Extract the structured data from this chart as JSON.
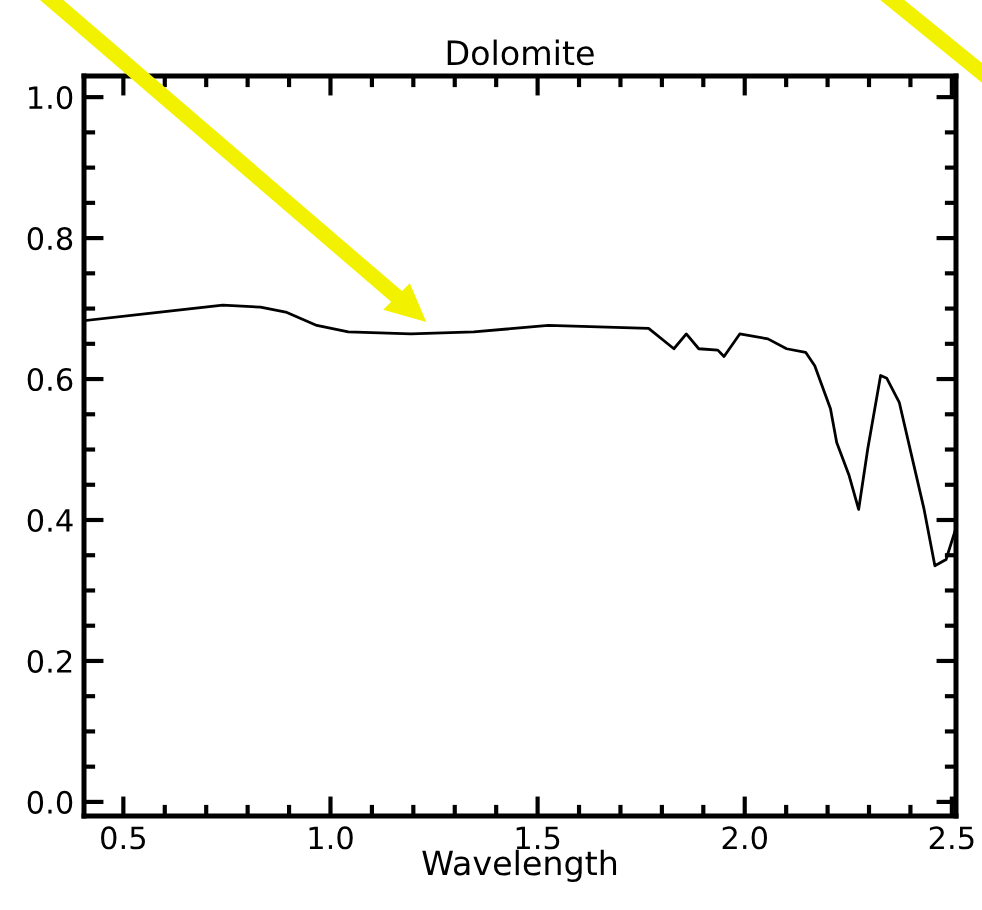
{
  "chart_data": {
    "type": "line",
    "title": "Dolomite",
    "xlabel": "Wavelength",
    "x": [
      0.408,
      0.589,
      0.74,
      0.831,
      0.892,
      0.967,
      1.043,
      1.194,
      1.346,
      1.526,
      1.647,
      1.768,
      1.829,
      1.859,
      1.889,
      1.935,
      1.95,
      1.988,
      2.056,
      2.101,
      2.147,
      2.169,
      2.207,
      2.222,
      2.252,
      2.275,
      2.297,
      2.328,
      2.343,
      2.373,
      2.403,
      2.433,
      2.459,
      2.486,
      2.509
    ],
    "series": [
      {
        "color": "#000000",
        "values": [
          0.683,
          0.695,
          0.705,
          0.702,
          0.695,
          0.676,
          0.667,
          0.664,
          0.667,
          0.676,
          0.674,
          0.672,
          0.643,
          0.664,
          0.643,
          0.641,
          0.632,
          0.664,
          0.657,
          0.643,
          0.638,
          0.619,
          0.558,
          0.51,
          0.463,
          0.415,
          0.501,
          0.605,
          0.601,
          0.567,
          0.491,
          0.415,
          0.335,
          0.344,
          0.387
        ]
      }
    ],
    "xlim": [
      0.405,
      2.51
    ],
    "ylim": [
      -0.02,
      1.03
    ],
    "xticks": [
      0.5,
      {
        "value": 1,
        "label": "1.0"
      },
      1.5,
      {
        "value": 2,
        "label": "2.0"
      },
      2.5
    ],
    "yticks": [
      {
        "value": 0,
        "label": "0.0"
      },
      0.2,
      0.4,
      0.6,
      0.8,
      {
        "value": 1,
        "label": "1.0"
      }
    ],
    "grid": false,
    "marker": "none",
    "line_style": "solid"
  }
}
